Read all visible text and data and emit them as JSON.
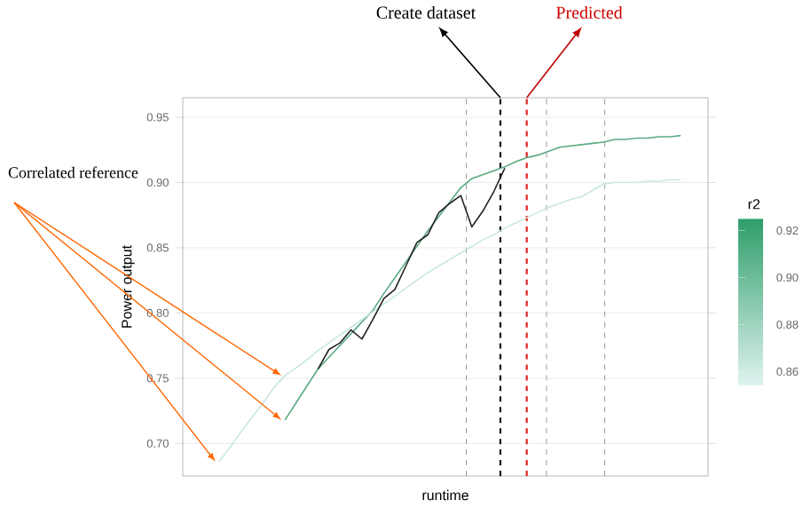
{
  "chart_data": {
    "type": "line",
    "xlabel": "runtime",
    "ylabel": "Power output",
    "clabel": "r2",
    "categories": [
      null,
      null,
      null,
      null,
      null,
      null,
      null,
      null,
      null,
      null,
      null,
      null,
      null,
      null,
      null,
      null,
      null,
      null,
      null,
      null,
      null,
      null,
      null,
      null,
      null,
      null,
      null,
      null,
      null,
      null,
      null,
      null,
      null,
      null,
      null,
      null,
      null,
      null,
      null,
      null,
      null,
      null,
      null,
      null,
      null
    ],
    "ylim": [
      0.675,
      0.965
    ],
    "yticks": [
      {
        "value": 0.7,
        "label": "0.70"
      },
      {
        "value": 0.75,
        "label": "0.75"
      },
      {
        "value": 0.8,
        "label": "0.80"
      },
      {
        "value": 0.85,
        "label": "0.85"
      },
      {
        "value": 0.9,
        "label": "0.90"
      },
      {
        "value": 0.95,
        "label": "0.95"
      }
    ],
    "clim": [
      0.854,
      0.925
    ],
    "cticks": [
      {
        "value": 0.86,
        "label": "0.86"
      },
      {
        "value": 0.88,
        "label": "0.88"
      },
      {
        "value": 0.9,
        "label": "0.90"
      },
      {
        "value": 0.92,
        "label": "0.92"
      }
    ],
    "grid": "y",
    "marker": "none",
    "line_style": "solid",
    "series": [
      {
        "color": "#5aaa82",
        "values": [
          null,
          null,
          null,
          null,
          null,
          null,
          null,
          0.718,
          0.731,
          0.744,
          0.757,
          0.766,
          0.775,
          0.784,
          0.793,
          0.802,
          0.815,
          0.827,
          0.839,
          0.851,
          0.863,
          0.874,
          0.885,
          0.896,
          0.903,
          0.906,
          0.909,
          0.912,
          0.916,
          0.919,
          0.921,
          0.924,
          0.927,
          0.928,
          0.929,
          0.93,
          0.931,
          0.933,
          0.933,
          0.934,
          0.934,
          0.935,
          0.935,
          0.936,
          null
        ]
      },
      {
        "color": "#c9e8e0",
        "values": [
          null,
          0.686,
          0.697,
          0.709,
          0.72,
          0.731,
          0.743,
          0.752,
          0.758,
          0.764,
          0.771,
          0.777,
          0.783,
          0.789,
          0.795,
          0.801,
          0.807,
          0.813,
          0.819,
          0.825,
          0.831,
          0.836,
          0.841,
          0.846,
          0.851,
          0.856,
          0.86,
          0.865,
          0.869,
          0.873,
          0.877,
          0.881,
          0.884,
          0.887,
          0.889,
          0.894,
          0.899,
          0.9,
          0.9,
          0.9,
          0.901,
          0.901,
          0.902,
          0.902,
          null
        ]
      },
      {
        "color": "#222222",
        "values": [
          null,
          null,
          null,
          null,
          null,
          null,
          null,
          null,
          null,
          null,
          0.757,
          0.772,
          0.777,
          0.787,
          0.78,
          0.795,
          0.811,
          0.818,
          0.836,
          0.854,
          0.86,
          0.877,
          0.884,
          0.89,
          0.866,
          0.878,
          0.893,
          0.911,
          null,
          null,
          null,
          null,
          null,
          null,
          null,
          null,
          null,
          null,
          null,
          null,
          null,
          null,
          null,
          null,
          null
        ]
      }
    ],
    "annotations": [
      "Create dataset",
      "Predicted",
      "Correlated reference"
    ]
  }
}
